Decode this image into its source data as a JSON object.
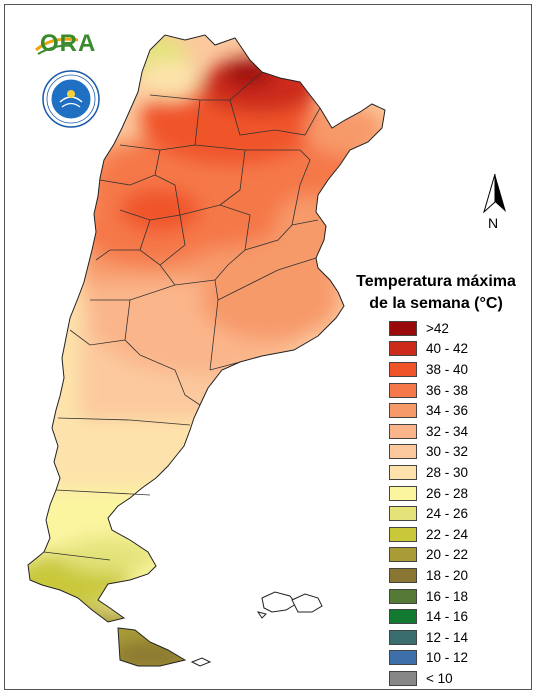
{
  "logos": {
    "ora_text": "ORA",
    "seal_text": "SERVICIO METEOROLÓGICO NACIONAL ARGENTINA"
  },
  "north_arrow": {
    "label": "N"
  },
  "legend": {
    "title_line1": "Temperatura máxima",
    "title_line2": "de la semana (°C)",
    "items": [
      {
        "label": ">42",
        "color": "#9b0a0a"
      },
      {
        "label": "40 - 42",
        "color": "#cc2a1a"
      },
      {
        "label": "38 - 40",
        "color": "#f0552a"
      },
      {
        "label": "36 - 38",
        "color": "#f5784a"
      },
      {
        "label": "34 - 36",
        "color": "#f79a6a"
      },
      {
        "label": "32 - 34",
        "color": "#fab58a"
      },
      {
        "label": "30 - 32",
        "color": "#fcc99e"
      },
      {
        "label": "28 - 30",
        "color": "#fde3ab"
      },
      {
        "label": "26 - 28",
        "color": "#fbf5a0"
      },
      {
        "label": "24 - 26",
        "color": "#e3e37a"
      },
      {
        "label": "22 - 24",
        "color": "#c9c83a"
      },
      {
        "label": "20 - 22",
        "color": "#a99c36"
      },
      {
        "label": "18 - 20",
        "color": "#8a7633"
      },
      {
        "label": "16 - 18",
        "color": "#557a36"
      },
      {
        "label": "14 - 16",
        "color": "#117a30"
      },
      {
        "label": "12 - 14",
        "color": "#3a6e6e"
      },
      {
        "label": "10 - 12",
        "color": "#3e6fa8"
      },
      {
        "label": "< 10",
        "color": "#878787"
      }
    ]
  },
  "map_colors": {
    "gt42": "#9b0a0a",
    "c40": "#cc2a1a",
    "c38": "#f0552a",
    "c36": "#f5784a",
    "c34": "#f79a6a",
    "c32": "#fab58a",
    "c30": "#fcc99e",
    "c28": "#fde3ab",
    "c26": "#fbf5a0",
    "c24": "#e3e37a",
    "c22": "#c9c83a",
    "c20": "#a99c36",
    "c18": "#8a7633"
  }
}
